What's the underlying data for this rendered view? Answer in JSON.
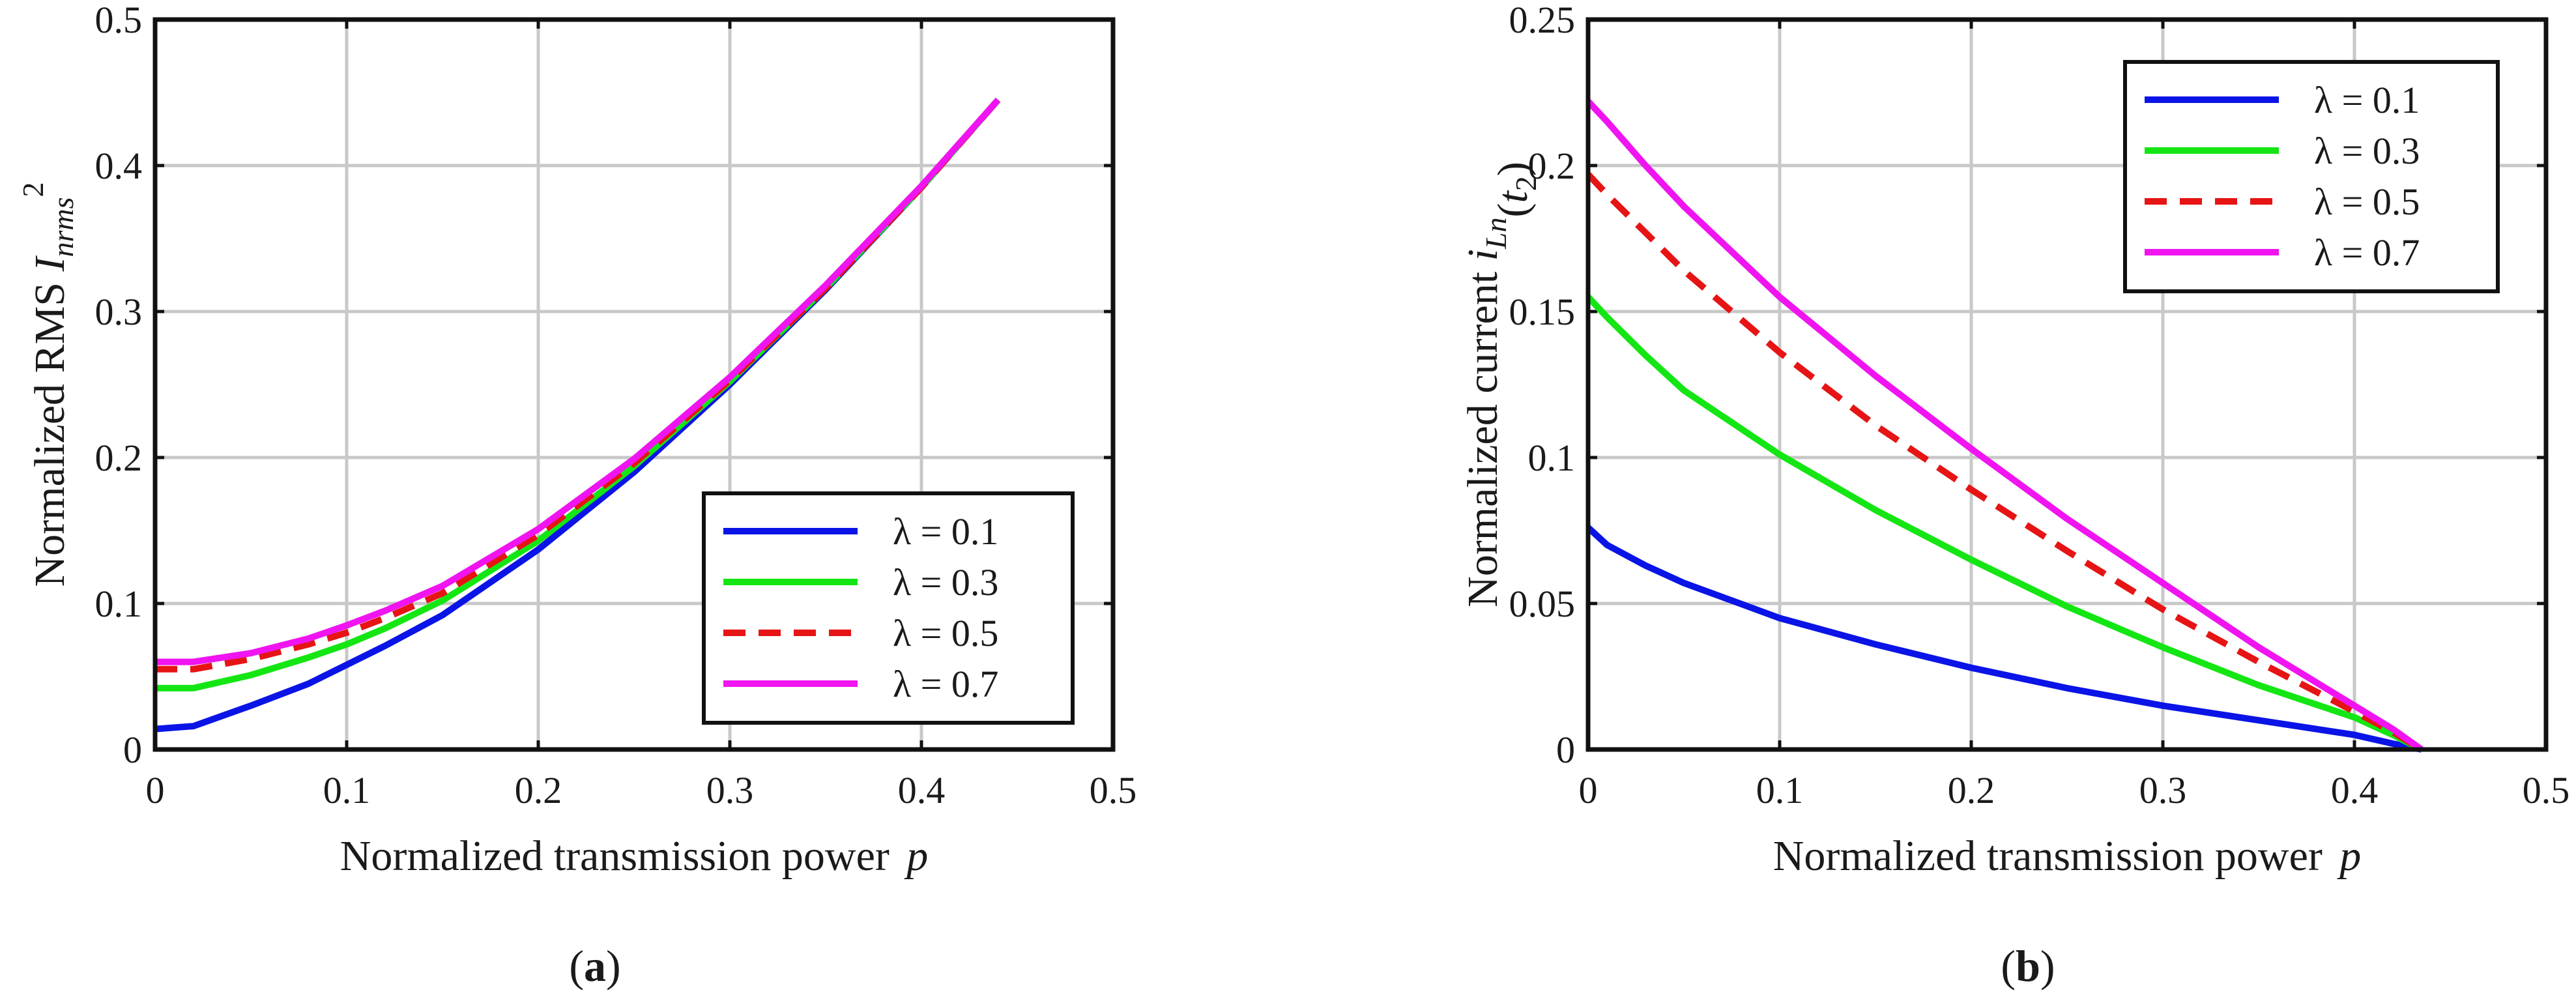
{
  "chart_data": [
    {
      "type": "line",
      "caption": "a",
      "xlabel": "Normalized transmission power",
      "xlabel_var": "p",
      "ylabel": "Normalized RMS",
      "ylabel_var": "I",
      "ylabel_sub": "nrms",
      "ylabel_sup": "2",
      "xlim": [
        0,
        0.5
      ],
      "ylim": [
        0,
        0.5
      ],
      "xticks": [
        0,
        0.1,
        0.2,
        0.3,
        0.4,
        0.5
      ],
      "xtick_labels": [
        "0",
        "0.1",
        "0.2",
        "0.3",
        "0.4",
        "0.5"
      ],
      "yticks": [
        0,
        0.1,
        0.2,
        0.3,
        0.4,
        0.5
      ],
      "ytick_labels": [
        "0",
        "0.1",
        "0.2",
        "0.3",
        "0.4",
        "0.5"
      ],
      "grid": true,
      "legend_position": "bottom-right",
      "series": [
        {
          "name": "λ = 0.1",
          "color": "#0a14e6",
          "dashed": false,
          "x": [
            0,
            0.02,
            0.05,
            0.08,
            0.1,
            0.12,
            0.15,
            0.2,
            0.25,
            0.3,
            0.35,
            0.4,
            0.44
          ],
          "y": [
            0.014,
            0.016,
            0.03,
            0.045,
            0.058,
            0.071,
            0.092,
            0.137,
            0.19,
            0.25,
            0.315,
            0.385,
            0.445
          ]
        },
        {
          "name": "λ = 0.3",
          "color": "#14e614",
          "dashed": false,
          "x": [
            0,
            0.02,
            0.05,
            0.08,
            0.1,
            0.12,
            0.15,
            0.2,
            0.25,
            0.3,
            0.35,
            0.4,
            0.44
          ],
          "y": [
            0.042,
            0.042,
            0.051,
            0.063,
            0.072,
            0.083,
            0.102,
            0.143,
            0.194,
            0.252,
            0.316,
            0.385,
            0.445
          ]
        },
        {
          "name": "λ = 0.5",
          "color": "#e61414",
          "dashed": true,
          "x": [
            0,
            0.02,
            0.05,
            0.08,
            0.1,
            0.12,
            0.15,
            0.2,
            0.25,
            0.3,
            0.35,
            0.4,
            0.44
          ],
          "y": [
            0.055,
            0.055,
            0.062,
            0.072,
            0.08,
            0.09,
            0.107,
            0.147,
            0.196,
            0.253,
            0.316,
            0.385,
            0.445
          ]
        },
        {
          "name": "λ = 0.7",
          "color": "#f014f0",
          "dashed": false,
          "x": [
            0,
            0.02,
            0.05,
            0.08,
            0.1,
            0.12,
            0.15,
            0.2,
            0.25,
            0.3,
            0.35,
            0.4,
            0.44
          ],
          "y": [
            0.06,
            0.06,
            0.066,
            0.076,
            0.085,
            0.095,
            0.112,
            0.151,
            0.199,
            0.255,
            0.318,
            0.386,
            0.445
          ]
        }
      ]
    },
    {
      "type": "line",
      "caption": "b",
      "xlabel": "Normalized transmission power",
      "xlabel_var": "p",
      "ylabel": "Normalized current",
      "ylabel_var": "i",
      "ylabel_sub": "Ln",
      "ylabel_arg": "t",
      "ylabel_arg_sub": "2",
      "xlim": [
        0,
        0.5
      ],
      "ylim": [
        0,
        0.25
      ],
      "xticks": [
        0,
        0.1,
        0.2,
        0.3,
        0.4,
        0.5
      ],
      "xtick_labels": [
        "0",
        "0.1",
        "0.2",
        "0.3",
        "0.4",
        "0.5"
      ],
      "yticks": [
        0,
        0.05,
        0.1,
        0.15,
        0.2,
        0.25
      ],
      "ytick_labels": [
        "0",
        "0.05",
        "0.1",
        "0.15",
        "0.2",
        "0.25"
      ],
      "grid": true,
      "legend_position": "top-right",
      "series": [
        {
          "name": "λ = 0.1",
          "color": "#0a14e6",
          "dashed": false,
          "x": [
            0,
            0.01,
            0.03,
            0.05,
            0.1,
            0.15,
            0.2,
            0.25,
            0.3,
            0.35,
            0.4,
            0.42,
            0.435
          ],
          "y": [
            0.076,
            0.07,
            0.063,
            0.057,
            0.045,
            0.036,
            0.028,
            0.021,
            0.015,
            0.01,
            0.005,
            0.002,
            0
          ]
        },
        {
          "name": "λ = 0.3",
          "color": "#14e614",
          "dashed": false,
          "x": [
            0,
            0.01,
            0.03,
            0.05,
            0.1,
            0.15,
            0.2,
            0.25,
            0.3,
            0.35,
            0.4,
            0.42,
            0.435
          ],
          "y": [
            0.155,
            0.148,
            0.135,
            0.123,
            0.101,
            0.082,
            0.065,
            0.049,
            0.035,
            0.022,
            0.011,
            0.005,
            0
          ]
        },
        {
          "name": "λ = 0.5",
          "color": "#e61414",
          "dashed": true,
          "x": [
            0,
            0.01,
            0.03,
            0.05,
            0.1,
            0.15,
            0.2,
            0.25,
            0.3,
            0.35,
            0.4,
            0.42,
            0.435
          ],
          "y": [
            0.197,
            0.19,
            0.177,
            0.164,
            0.136,
            0.111,
            0.089,
            0.068,
            0.048,
            0.03,
            0.013,
            0.006,
            0
          ]
        },
        {
          "name": "λ = 0.7",
          "color": "#f014f0",
          "dashed": false,
          "x": [
            0,
            0.01,
            0.03,
            0.05,
            0.1,
            0.15,
            0.2,
            0.25,
            0.3,
            0.35,
            0.4,
            0.42,
            0.435
          ],
          "y": [
            0.222,
            0.215,
            0.2,
            0.186,
            0.155,
            0.128,
            0.103,
            0.079,
            0.057,
            0.035,
            0.015,
            0.007,
            0
          ]
        }
      ]
    }
  ]
}
